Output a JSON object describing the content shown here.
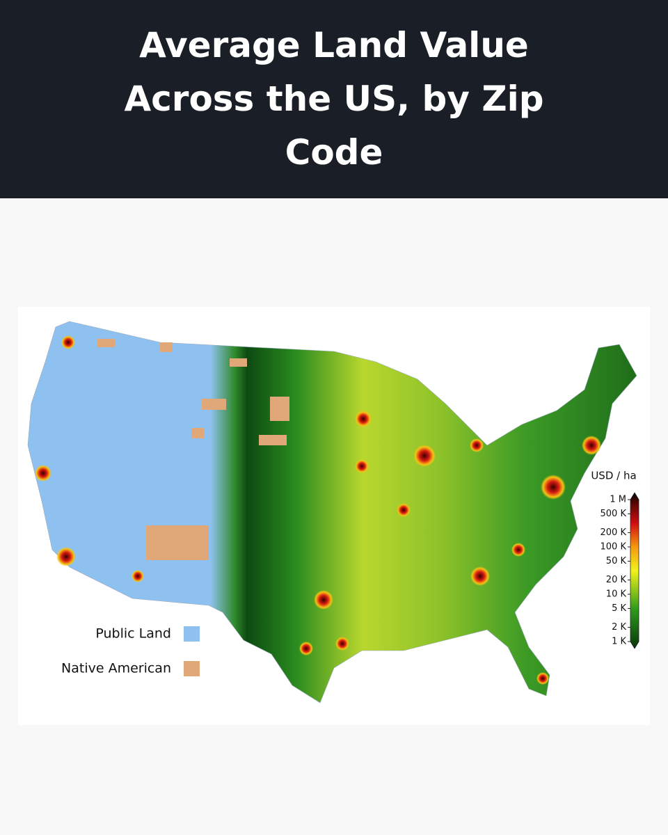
{
  "header": {
    "title": "Average Land Value Across the US, by Zip Code"
  },
  "map": {
    "legend": [
      {
        "label": "Public Land",
        "color": "#8fc1f0"
      },
      {
        "label": "Native American",
        "color": "#e0a878"
      }
    ],
    "colorbar": {
      "label": "USD / ha",
      "log_scale": true,
      "range": [
        1000,
        1000000
      ],
      "ticks": [
        {
          "value": 1000000,
          "label": "1 M"
        },
        {
          "value": 500000,
          "label": "500 K"
        },
        {
          "value": 200000,
          "label": "200 K"
        },
        {
          "value": 100000,
          "label": "100 K"
        },
        {
          "value": 50000,
          "label": "50 K"
        },
        {
          "value": 20000,
          "label": "20 K"
        },
        {
          "value": 10000,
          "label": "10 K"
        },
        {
          "value": 5000,
          "label": "5 K"
        },
        {
          "value": 2000,
          "label": "2 K"
        },
        {
          "value": 1000,
          "label": "1 K"
        }
      ]
    }
  }
}
